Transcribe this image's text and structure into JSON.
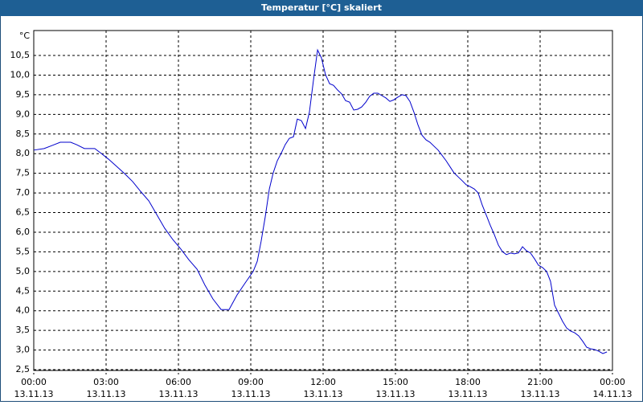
{
  "chart_data": {
    "type": "line",
    "title": "Temperatur [°C] skaliert",
    "y_unit": "°C",
    "xlim": [
      0,
      24
    ],
    "xticks": [
      {
        "value": 0,
        "label": "00:00"
      },
      {
        "value": 3,
        "label": "03:00"
      },
      {
        "value": 6,
        "label": "06:00"
      },
      {
        "value": 9,
        "label": "09:00"
      },
      {
        "value": 12,
        "label": "12:00"
      },
      {
        "value": 15,
        "label": "15:00"
      },
      {
        "value": 18,
        "label": "18:00"
      },
      {
        "value": 21,
        "label": "21:00"
      },
      {
        "value": 24,
        "label": "00:00"
      }
    ],
    "xtick_dates": [
      "13.11.13",
      "13.11.13",
      "13.11.13",
      "13.11.13",
      "13.11.13",
      "13.11.13",
      "13.11.13",
      "13.11.13",
      "14.11.13"
    ],
    "ylim": [
      2.5,
      11
    ],
    "yticks": [
      {
        "value": 2.5,
        "label": "2,5"
      },
      {
        "value": 3,
        "label": "3,0"
      },
      {
        "value": 3.5,
        "label": "3,5"
      },
      {
        "value": 4,
        "label": "4,0"
      },
      {
        "value": 4.5,
        "label": "4,5"
      },
      {
        "value": 5,
        "label": "5,0"
      },
      {
        "value": 5.5,
        "label": "5,5"
      },
      {
        "value": 6,
        "label": "6,0"
      },
      {
        "value": 6.5,
        "label": "6,5"
      },
      {
        "value": 7,
        "label": "7,0"
      },
      {
        "value": 7.5,
        "label": "7,5"
      },
      {
        "value": 8,
        "label": "8,0"
      },
      {
        "value": 8.5,
        "label": "8,5"
      },
      {
        "value": 9,
        "label": "9,0"
      },
      {
        "value": 9.5,
        "label": "9,5"
      },
      {
        "value": 10,
        "label": "10,0"
      },
      {
        "value": 10.5,
        "label": "10,5"
      }
    ],
    "grid": true,
    "color": "#0000cc",
    "x": [
      0,
      0.43,
      0.77,
      1.1,
      1.53,
      1.77,
      2.1,
      2.53,
      2.77,
      3.1,
      3.43,
      3.77,
      4.1,
      4.43,
      4.77,
      5.1,
      5.43,
      5.77,
      6.1,
      6.43,
      6.77,
      7.1,
      7.43,
      7.77,
      8.1,
      8.43,
      8.77,
      9.1,
      9.27,
      9.43,
      9.6,
      9.77,
      9.93,
      10.1,
      10.27,
      10.43,
      10.6,
      10.77,
      10.93,
      11.1,
      11.27,
      11.43,
      11.6,
      11.77,
      11.93,
      12.1,
      12.27,
      12.43,
      12.6,
      12.77,
      12.93,
      13.1,
      13.27,
      13.43,
      13.6,
      13.77,
      13.93,
      14.1,
      14.27,
      14.43,
      14.6,
      14.77,
      14.93,
      15.1,
      15.27,
      15.43,
      15.6,
      15.77,
      15.93,
      16.1,
      16.27,
      16.43,
      16.6,
      16.77,
      16.93,
      17.1,
      17.27,
      17.43,
      17.6,
      17.77,
      17.93,
      18.1,
      18.27,
      18.43,
      18.6,
      18.77,
      18.93,
      19.1,
      19.27,
      19.43,
      19.6,
      19.77,
      19.93,
      20.1,
      20.27,
      20.43,
      20.6,
      20.77,
      20.93,
      21.1,
      21.27,
      21.43,
      21.6,
      21.77,
      21.93,
      22.1,
      22.27,
      22.43,
      22.6,
      22.77,
      22.93,
      23.1,
      23.27,
      23.43,
      23.6,
      23.77
    ],
    "values": [
      8.09,
      8.13,
      8.21,
      8.29,
      8.29,
      8.23,
      8.13,
      8.13,
      8.02,
      7.86,
      7.68,
      7.49,
      7.29,
      7.04,
      6.8,
      6.45,
      6.1,
      5.81,
      5.57,
      5.3,
      5.06,
      4.65,
      4.3,
      4.03,
      4.03,
      4.4,
      4.71,
      5.0,
      5.26,
      5.77,
      6.39,
      7.1,
      7.51,
      7.82,
      8.02,
      8.23,
      8.39,
      8.43,
      8.88,
      8.84,
      8.64,
      9.05,
      9.87,
      10.64,
      10.44,
      10.01,
      9.78,
      9.74,
      9.62,
      9.52,
      9.35,
      9.31,
      9.11,
      9.13,
      9.19,
      9.31,
      9.46,
      9.54,
      9.54,
      9.48,
      9.42,
      9.33,
      9.37,
      9.44,
      9.5,
      9.48,
      9.33,
      9.05,
      8.74,
      8.47,
      8.35,
      8.29,
      8.19,
      8.09,
      7.96,
      7.82,
      7.66,
      7.51,
      7.41,
      7.31,
      7.21,
      7.16,
      7.1,
      7.0,
      6.69,
      6.43,
      6.18,
      5.94,
      5.67,
      5.51,
      5.43,
      5.47,
      5.45,
      5.47,
      5.63,
      5.53,
      5.47,
      5.32,
      5.16,
      5.1,
      5.0,
      4.75,
      4.14,
      3.93,
      3.73,
      3.56,
      3.48,
      3.44,
      3.36,
      3.22,
      3.07,
      3.03,
      3.01,
      2.97,
      2.91,
      2.95
    ]
  }
}
